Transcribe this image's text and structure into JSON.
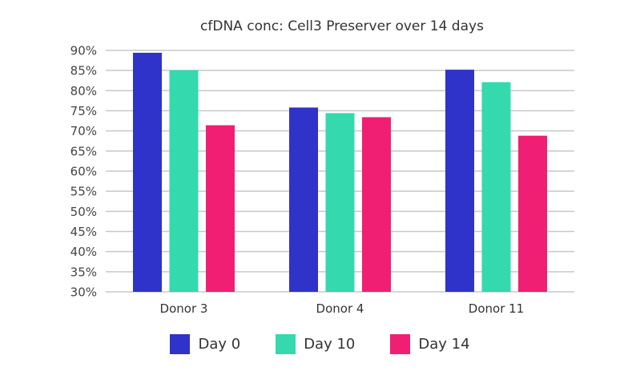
{
  "chart_data": {
    "type": "bar",
    "title": "cfDNA conc: Cell3 Preserver over 14 days",
    "xlabel": "",
    "ylabel": "",
    "categories": [
      "Donor 3",
      "Donor 4",
      "Donor 11"
    ],
    "series": [
      {
        "name": "Day 0",
        "color": "#2f33c9",
        "values": [
          89.4,
          75.8,
          85.2
        ]
      },
      {
        "name": "Day 10",
        "color": "#34d9ad",
        "values": [
          85.1,
          74.4,
          82.1
        ]
      },
      {
        "name": "Day 14",
        "color": "#f01f73",
        "values": [
          71.4,
          73.4,
          68.8
        ]
      }
    ],
    "ylim": [
      30,
      90
    ],
    "yticks": [
      "30%",
      "35%",
      "40%",
      "45%",
      "50%",
      "55%",
      "60%",
      "65%",
      "70%",
      "75%",
      "80%",
      "85%",
      "90%"
    ],
    "ytick_values": [
      30,
      35,
      40,
      45,
      50,
      55,
      60,
      65,
      70,
      75,
      80,
      85,
      90
    ],
    "grid": true,
    "legend_position": "bottom"
  }
}
